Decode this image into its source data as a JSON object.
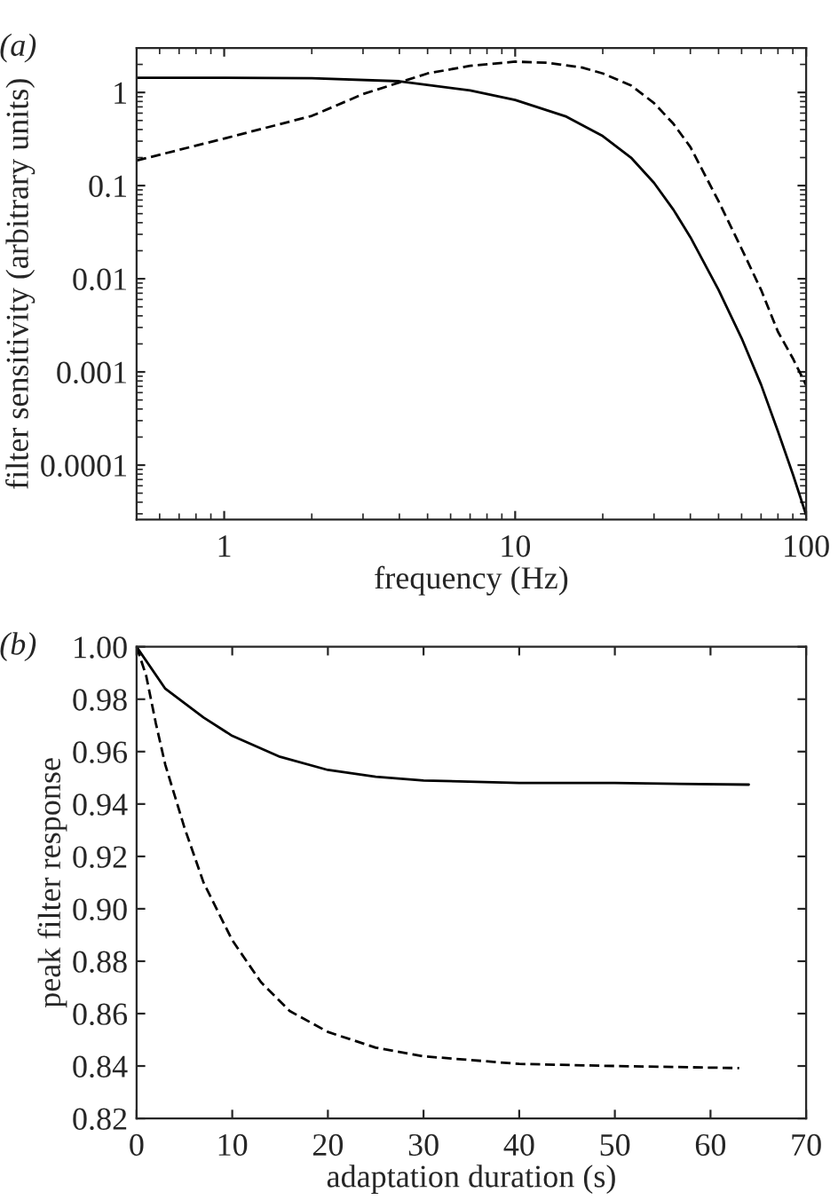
{
  "chart_data": [
    {
      "type": "line",
      "title": "(a)",
      "xlabel": "frequency (Hz)",
      "ylabel": "filter sensitivity (arbitrary units)",
      "log": "xy",
      "xlim": [
        0.5,
        100
      ],
      "ylim": [
        2.6e-05,
        3
      ],
      "xticks": [
        1,
        10,
        100
      ],
      "yticks": [
        0.0001,
        0.001,
        0.01,
        0.1,
        1
      ],
      "series": [
        {
          "color": "#000000",
          "line_style": "solid",
          "x": [
            0.5,
            1,
            2,
            4,
            7,
            10,
            15,
            20,
            25,
            30,
            35,
            40,
            50,
            60,
            70,
            80,
            90,
            100
          ],
          "values": [
            1.44,
            1.44,
            1.42,
            1.32,
            1.05,
            0.83,
            0.55,
            0.34,
            0.2,
            0.107,
            0.055,
            0.028,
            0.0076,
            0.0023,
            0.00073,
            0.00023,
            8e-05,
            2.9e-05
          ]
        },
        {
          "color": "#000000",
          "line_style": "dashed",
          "x": [
            0.5,
            1,
            2,
            3,
            5,
            7,
            10,
            13,
            17,
            20,
            25,
            30,
            35,
            40,
            50,
            60,
            70,
            80,
            90,
            100
          ],
          "values": [
            0.186,
            0.32,
            0.56,
            0.96,
            1.6,
            1.93,
            2.14,
            2.08,
            1.85,
            1.6,
            1.19,
            0.77,
            0.46,
            0.26,
            0.068,
            0.021,
            0.0076,
            0.0027,
            0.0014,
            0.00072
          ]
        }
      ]
    },
    {
      "type": "line",
      "title": "(b)",
      "xlabel": "adaptation duration (s)",
      "ylabel": "peak filter response",
      "xlim": [
        0,
        70
      ],
      "ylim": [
        0.82,
        1.0
      ],
      "xticks": [
        0,
        10,
        20,
        30,
        40,
        50,
        60,
        70
      ],
      "yticks": [
        {
          "value": 0.82,
          "label": "0.82"
        },
        {
          "value": 0.84,
          "label": "0.84"
        },
        {
          "value": 0.86,
          "label": "0.86"
        },
        {
          "value": 0.88,
          "label": "0.88"
        },
        {
          "value": 0.9,
          "label": "0.90"
        },
        {
          "value": 0.92,
          "label": "0.92"
        },
        {
          "value": 0.94,
          "label": "0.94"
        },
        {
          "value": 0.96,
          "label": "0.96"
        },
        {
          "value": 0.98,
          "label": "0.98"
        },
        {
          "value": 1.0,
          "label": "1.00"
        }
      ],
      "series": [
        {
          "color": "#000000",
          "line_style": "solid",
          "x": [
            0,
            3,
            7,
            10,
            15,
            20,
            25,
            30,
            40,
            50,
            64
          ],
          "values": [
            1.0,
            0.984,
            0.973,
            0.966,
            0.958,
            0.953,
            0.9504,
            0.949,
            0.948,
            0.948,
            0.9474
          ]
        },
        {
          "color": "#000000",
          "line_style": "dashed",
          "x": [
            0,
            1,
            2,
            3,
            5,
            7,
            10,
            13,
            16,
            20,
            25,
            30,
            40,
            50,
            63
          ],
          "values": [
            1.0,
            0.989,
            0.971,
            0.955,
            0.931,
            0.91,
            0.888,
            0.872,
            0.861,
            0.853,
            0.847,
            0.8437,
            0.8408,
            0.84,
            0.8392
          ]
        }
      ]
    }
  ]
}
